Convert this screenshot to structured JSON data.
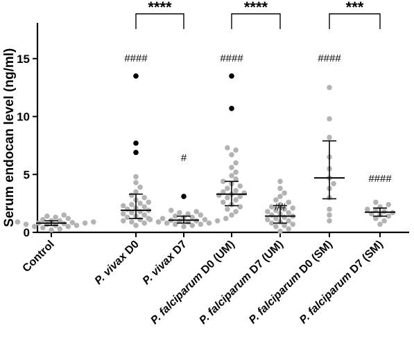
{
  "chart_data": {
    "type": "scatter",
    "title": "",
    "xlabel": "",
    "ylabel": "Serum endocan level (ng/ml)",
    "ylim": [
      0,
      18
    ],
    "yticks": [
      "0",
      "5",
      "10",
      "15"
    ],
    "grid": false,
    "colors": {
      "point_gray": "#b3b3b3",
      "point_black": "#000000",
      "error_bar": "#000000"
    },
    "groups": [
      {
        "label_parts": [
          {
            "text": "Control",
            "italic": false
          }
        ],
        "median": 0.8,
        "q1": 0.6,
        "q3": 1.0,
        "values": [
          0.2,
          0.3,
          0.4,
          0.5,
          0.5,
          0.6,
          0.6,
          0.7,
          0.7,
          0.75,
          0.8,
          0.8,
          0.85,
          0.9,
          0.9,
          1.0,
          1.0,
          1.1,
          1.2,
          1.3,
          1.4,
          1.5
        ],
        "outliers": [],
        "annotation": ""
      },
      {
        "label_parts": [
          {
            "text": "P. vivax",
            "italic": true
          },
          {
            "text": " D0",
            "italic": false
          }
        ],
        "median": 1.9,
        "q1": 1.2,
        "q3": 3.3,
        "values": [
          0.6,
          0.8,
          0.9,
          1.0,
          1.1,
          1.2,
          1.3,
          1.4,
          1.5,
          1.6,
          1.7,
          1.8,
          1.9,
          2.0,
          2.1,
          2.2,
          2.3,
          2.4,
          2.5,
          2.6,
          2.8,
          3.0,
          3.2,
          3.5,
          3.9,
          4.3,
          4.8
        ],
        "outliers": [
          6.9,
          7.7,
          13.5
        ],
        "annotation": "####"
      },
      {
        "label_parts": [
          {
            "text": "P. vivax",
            "italic": true
          },
          {
            "text": " D7",
            "italic": false
          }
        ],
        "median": 1.05,
        "q1": 0.8,
        "q3": 1.4,
        "values": [
          0.5,
          0.6,
          0.7,
          0.7,
          0.8,
          0.8,
          0.9,
          0.9,
          1.0,
          1.0,
          1.0,
          1.05,
          1.1,
          1.1,
          1.2,
          1.2,
          1.3,
          1.3,
          1.4,
          1.5,
          1.6,
          1.7,
          1.8,
          1.9
        ],
        "outliers": [
          3.1
        ],
        "annotation": "#"
      },
      {
        "label_parts": [
          {
            "text": "P. falciparum",
            "italic": true
          },
          {
            "text": " D0 (UM)",
            "italic": false
          }
        ],
        "median": 3.3,
        "q1": 2.3,
        "q3": 4.4,
        "values": [
          1.5,
          1.8,
          2.0,
          2.2,
          2.4,
          2.6,
          2.8,
          3.0,
          3.1,
          3.2,
          3.3,
          3.4,
          3.5,
          3.6,
          3.8,
          4.0,
          4.2,
          4.4,
          4.6,
          4.9,
          5.2,
          5.6,
          6.0,
          6.7,
          7.1,
          7.3
        ],
        "outliers": [
          10.7,
          13.5
        ],
        "annotation": "####"
      },
      {
        "label_parts": [
          {
            "text": "P. falciparum",
            "italic": true
          },
          {
            "text": " D7 (UM)",
            "italic": false
          }
        ],
        "median": 1.4,
        "q1": 0.8,
        "q3": 2.3,
        "values": [
          0.1,
          0.3,
          0.5,
          0.6,
          0.7,
          0.8,
          0.9,
          1.0,
          1.1,
          1.2,
          1.3,
          1.4,
          1.5,
          1.6,
          1.7,
          1.8,
          1.9,
          2.0,
          2.1,
          2.2,
          2.4,
          2.6,
          2.8,
          3.1,
          3.4,
          3.8,
          4.4
        ],
        "outliers": [],
        "annotation": "##"
      },
      {
        "label_parts": [
          {
            "text": "P. falciparum",
            "italic": true
          },
          {
            "text": " D0 (SM)",
            "italic": false
          }
        ],
        "median": 4.7,
        "q1": 2.9,
        "q3": 7.9,
        "values": [
          1.0,
          1.5,
          2.0,
          3.0,
          3.8,
          4.2,
          4.7,
          5.5,
          6.5,
          8.2,
          9.8,
          12.5
        ],
        "outliers": [],
        "annotation": "####"
      },
      {
        "label_parts": [
          {
            "text": "P. falciparum",
            "italic": true
          },
          {
            "text": " D7 (SM)",
            "italic": false
          }
        ],
        "median": 1.75,
        "q1": 1.4,
        "q3": 2.1,
        "values": [
          0.7,
          1.0,
          1.2,
          1.4,
          1.5,
          1.6,
          1.7,
          1.8,
          1.9,
          2.0,
          2.2,
          2.4,
          2.6
        ],
        "outliers": [],
        "annotation": "####"
      }
    ],
    "comparisons": [
      {
        "from_group": 1,
        "to_group": 2,
        "stars": "****"
      },
      {
        "from_group": 3,
        "to_group": 4,
        "stars": "****"
      },
      {
        "from_group": 5,
        "to_group": 6,
        "stars": "***"
      }
    ]
  }
}
